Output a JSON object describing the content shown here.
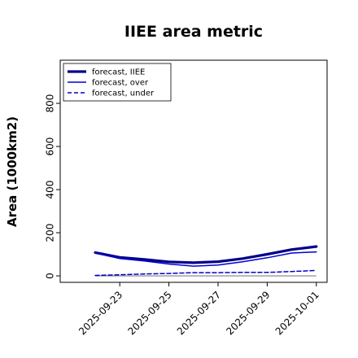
{
  "chart_data": {
    "type": "line",
    "title": "IIEE area metric",
    "xlabel": "",
    "ylabel": "Area (1000km2)",
    "x": [
      "2025-09-22",
      "2025-09-23",
      "2025-09-24",
      "2025-09-25",
      "2025-09-26",
      "2025-09-27",
      "2025-09-28",
      "2025-09-29",
      "2025-09-30",
      "2025-10-01"
    ],
    "x_ticks": [
      "2025-09-23",
      "2025-09-25",
      "2025-09-27",
      "2025-09-29",
      "2025-10-01"
    ],
    "x_tick_colors": [
      "#228b22",
      "#000000",
      "#000000",
      "#000000",
      "#000000"
    ],
    "y_ticks": [
      0,
      200,
      400,
      600,
      800
    ],
    "ylim": [
      -30,
      1000
    ],
    "grid": false,
    "legend_position": "top-left",
    "series": [
      {
        "name": "forecast, IIEE",
        "color": "#00008b",
        "style": "solid-thick",
        "values": [
          108,
          86,
          76,
          65,
          61,
          66,
          80,
          100,
          122,
          136
        ]
      },
      {
        "name": "forecast, over",
        "color": "#0000cd",
        "style": "solid",
        "values": [
          106,
          80,
          69,
          55,
          45,
          50,
          65,
          84,
          106,
          111
        ]
      },
      {
        "name": "forecast, under",
        "color": "#0000cd",
        "style": "dashed",
        "values": [
          2,
          5,
          9,
          11,
          15,
          15,
          16,
          16,
          20,
          25
        ]
      }
    ],
    "baseline": {
      "value": 0,
      "color": "#808080"
    }
  }
}
